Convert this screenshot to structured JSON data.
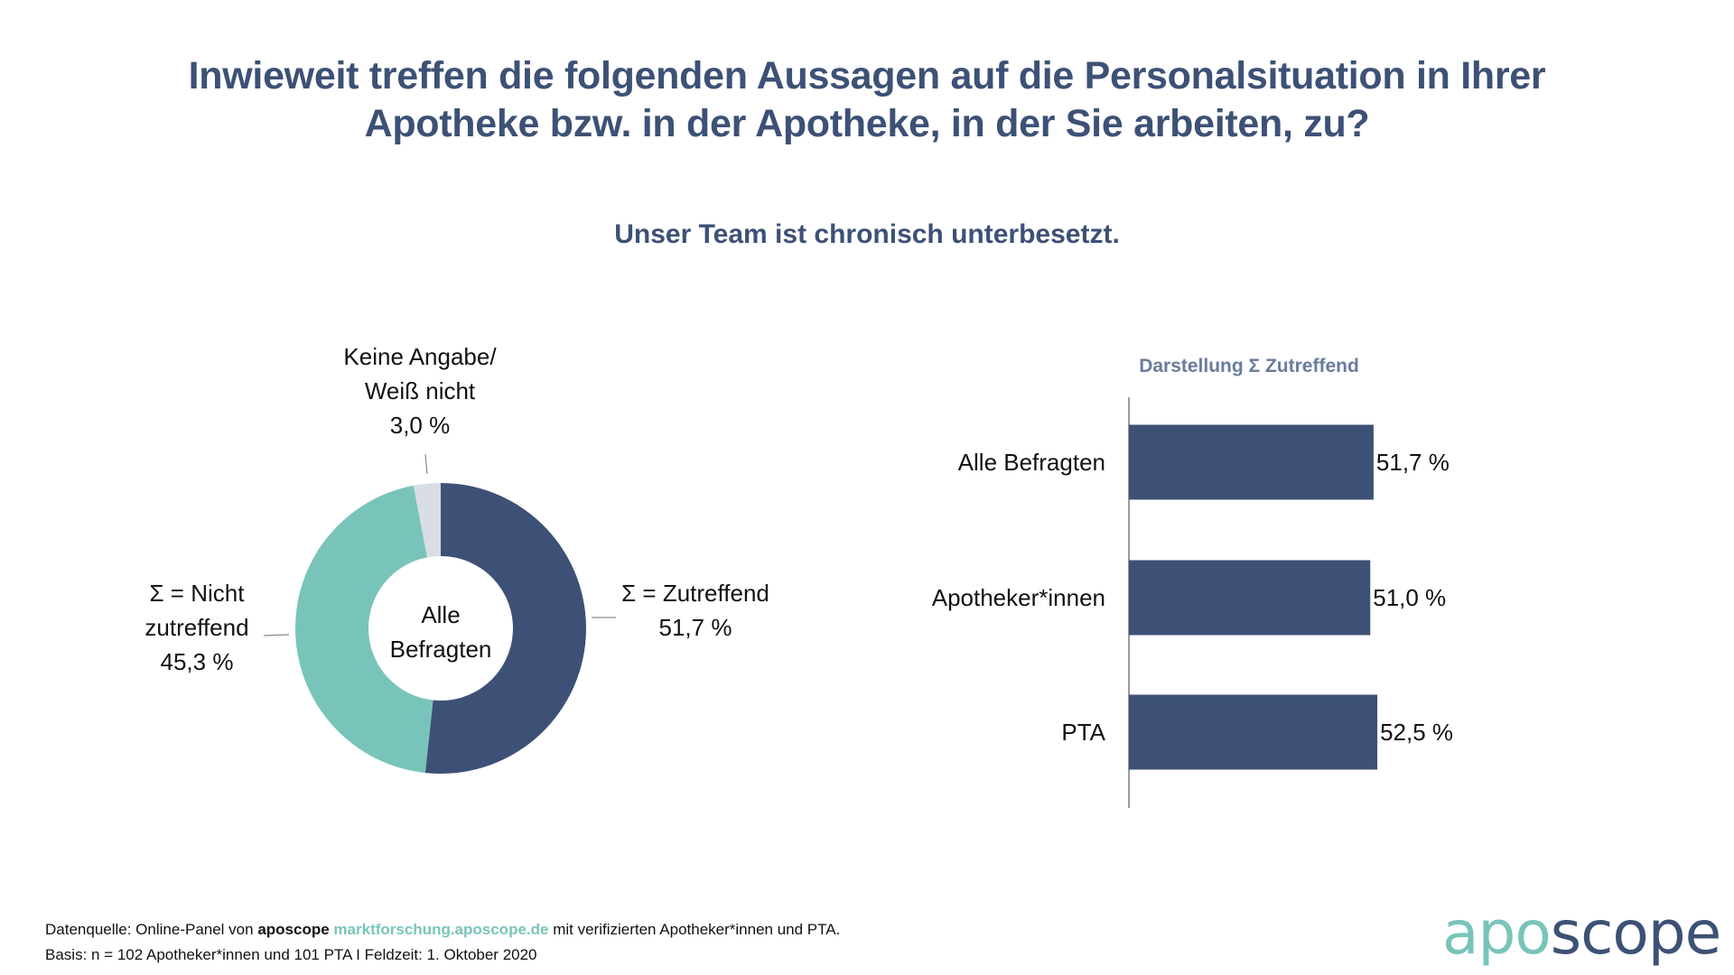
{
  "header": {
    "title_line1": "Inwieweit treffen die folgenden Aussagen auf die Personalsituation in Ihrer",
    "title_line2": "Apotheke bzw. in der Apotheke, in der Sie arbeiten, zu?",
    "subtitle": "Unser Team ist chronisch unterbesetzt."
  },
  "colors": {
    "primary": "#3d5176",
    "teal": "#79c4ba",
    "light_gray": "#d9dde5",
    "bar_title": "#6a7c9c"
  },
  "chart_data": [
    {
      "type": "pie",
      "variant": "donut",
      "center_label": [
        "Alle",
        "Befragten"
      ],
      "slices": [
        {
          "name": "Σ = Zutreffend",
          "label_lines": [
            "Σ = Zutreffend",
            "51,7 %"
          ],
          "value": 51.7,
          "color": "#3d5176"
        },
        {
          "name": "Σ = Nicht zutreffend",
          "label_lines": [
            "Σ = Nicht",
            "zutreffend",
            "45,3 %"
          ],
          "value": 45.3,
          "color": "#79c4ba"
        },
        {
          "name": "Keine Angabe/ Weiß nicht",
          "label_lines": [
            "Keine Angabe/",
            "Weiß nicht",
            "3,0 %"
          ],
          "value": 3.0,
          "color": "#d9dde5"
        }
      ],
      "start_angle": "12 o'clock",
      "direction": "clockwise"
    },
    {
      "type": "bar",
      "orientation": "horizontal",
      "title": "Darstellung Σ Zutreffend",
      "categories": [
        "Alle Befragten",
        "Apotheker*innen",
        "PTA"
      ],
      "values": [
        51.7,
        51.0,
        52.5
      ],
      "value_labels": [
        "51,7 %",
        "51,0 %",
        "52,5 %"
      ],
      "unit": "%",
      "color": "#3d5176",
      "grid": false,
      "xlim": [
        0,
        100
      ]
    }
  ],
  "footer": {
    "line1_prefix": "Datenquelle: Online-Panel von ",
    "line1_brand": "aposcope",
    "line1_link": "marktforschung.aposcope.de",
    "line1_suffix": " mit verifizierten Apotheker*innen und PTA.",
    "line2": "Basis: n = 102 Apotheker*innen und 101 PTA I Feldzeit: 1. Oktober 2020"
  },
  "logo": {
    "part1": "apo",
    "part2": "scope"
  }
}
